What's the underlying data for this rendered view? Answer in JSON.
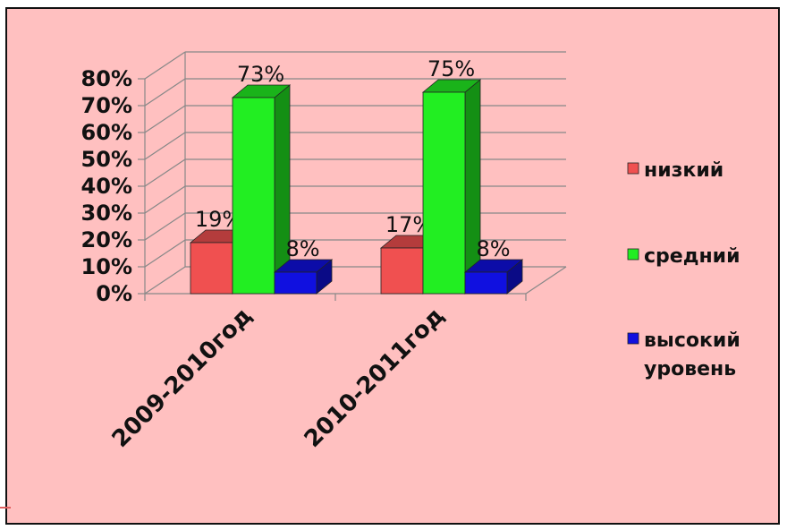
{
  "chart_data": {
    "type": "bar",
    "style": "3d-clustered-column",
    "categories": [
      "2009-2010год",
      "2010-2011год"
    ],
    "series": [
      {
        "name": "низкий",
        "values": [
          19,
          17
        ],
        "labels": [
          "19%",
          "17%"
        ],
        "color": "#f05050"
      },
      {
        "name": "средний",
        "values": [
          73,
          75
        ],
        "labels": [
          "73%",
          "75%"
        ],
        "color": "#22ee22"
      },
      {
        "name": "высокий уровень",
        "values": [
          8,
          8
        ],
        "labels": [
          "8%",
          "8%"
        ],
        "color": "#1010e0"
      }
    ],
    "y_ticks": [
      "0%",
      "10%",
      "20%",
      "30%",
      "40%",
      "50%",
      "60%",
      "70%",
      "80%"
    ],
    "ylim": [
      0,
      80
    ],
    "grid": true,
    "legend_position": "right",
    "background_color": "#ffc0c0"
  }
}
